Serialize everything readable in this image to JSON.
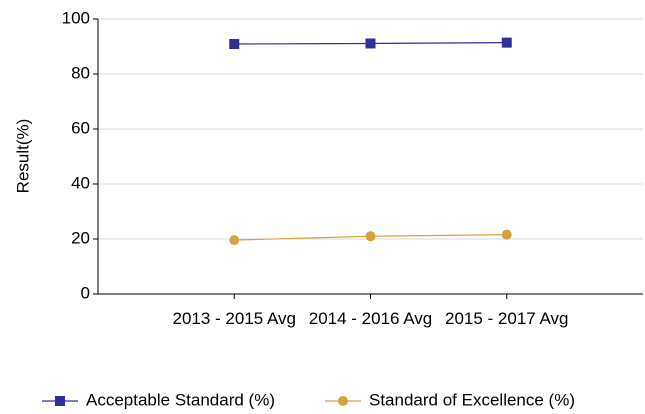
{
  "chart_data": {
    "type": "line",
    "categories": [
      "2013 - 2015 Avg",
      "2014 - 2016 Avg",
      "2015 - 2017 Avg"
    ],
    "series": [
      {
        "name": "Acceptable Standard (%)",
        "color": "#2f2f9a",
        "marker": "square",
        "values": [
          90.9,
          91.1,
          91.4
        ]
      },
      {
        "name": "Standard of Excellence (%)",
        "color": "#d4a43c",
        "marker": "circle",
        "values": [
          19.6,
          21.0,
          21.6
        ]
      }
    ],
    "y_label": "Result(%)",
    "ylim": [
      0,
      100
    ],
    "yticks": [
      0,
      20,
      40,
      60,
      80,
      100
    ],
    "grid": true,
    "legend": "bottom"
  }
}
